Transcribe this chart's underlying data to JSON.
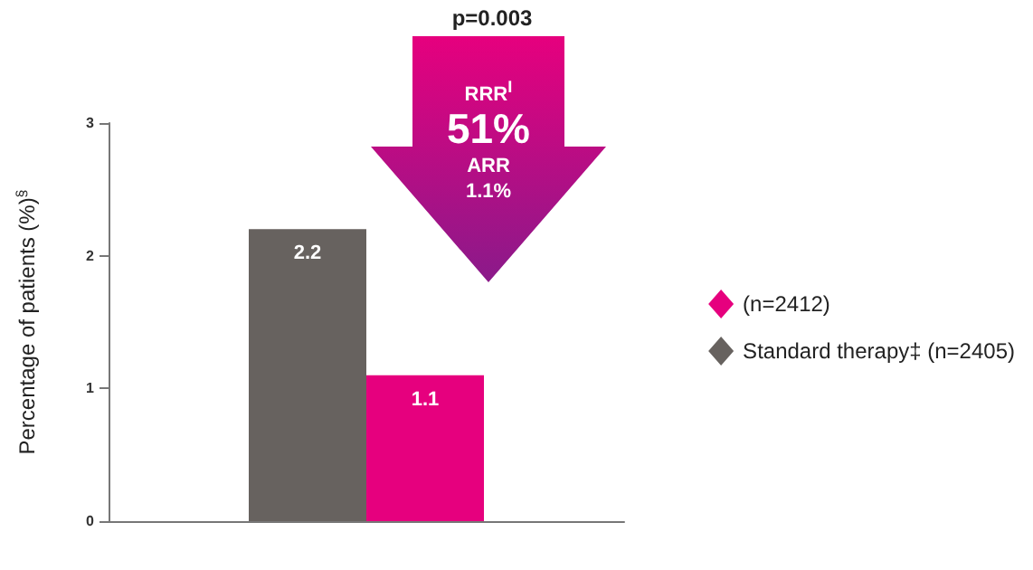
{
  "chart_data": {
    "type": "bar",
    "ylabel": "Percentage of patients (%)$^{§}$",
    "categories": [
      null
    ],
    "series": [
      {
        "name": "Standard therapy‡ (n=2405)",
        "color": "#67625f",
        "values": [
          2.2
        ]
      },
      {
        "name": "(n=2412)",
        "color": "#e6007e",
        "values": [
          1.1
        ]
      }
    ],
    "ylim": [
      0,
      3
    ],
    "yticks": [
      0,
      1,
      2,
      3
    ],
    "grid": false,
    "legend": "right",
    "marker": "diamond",
    "data_labels": true,
    "annotations": [
      "p=0.003",
      "RRR$^{I}$",
      "51%",
      "ARR",
      "1.1%"
    ]
  }
}
